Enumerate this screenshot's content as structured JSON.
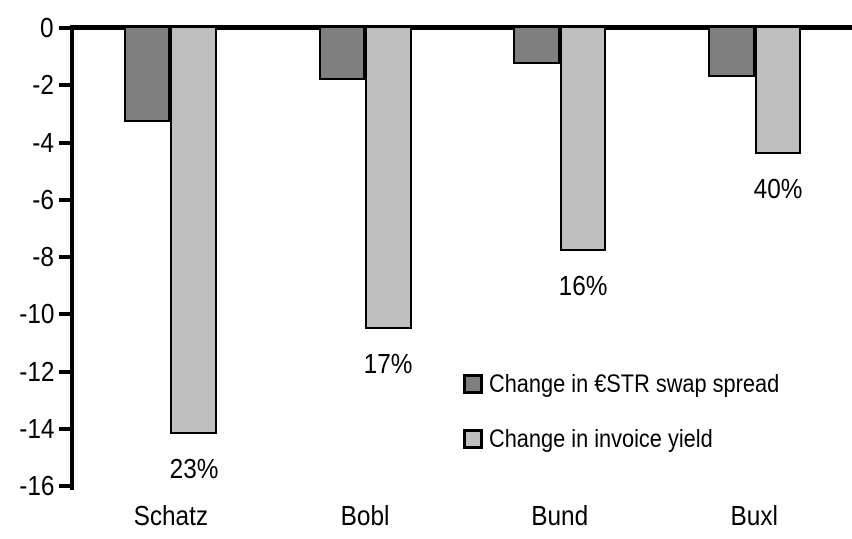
{
  "chart_data": {
    "type": "bar",
    "orientation": "vertical",
    "title": "",
    "xlabel": "",
    "ylabel": "",
    "categories": [
      "Schatz",
      "Bobl",
      "Bund",
      "Buxl"
    ],
    "series": [
      {
        "name": "Change in €STR swap spread",
        "color": "#7f7f7f",
        "values": [
          -3.3,
          -1.8,
          -1.25,
          -1.7
        ]
      },
      {
        "name": "Change in invoice yield",
        "color": "#bfbfbf",
        "values": [
          -14.2,
          -10.5,
          -7.8,
          -4.4
        ]
      }
    ],
    "bar_labels": {
      "attached_to_series": "Change in invoice yield",
      "values": [
        "23%",
        "17%",
        "16%",
        "40%"
      ]
    },
    "y_axis": {
      "min": -16,
      "max": 0,
      "tick_step": 2,
      "ticks": [
        0,
        -2,
        -4,
        -6,
        -8,
        -10,
        -12,
        -14,
        -16
      ]
    },
    "grid": false,
    "legend": {
      "position": "inside-bottom-right"
    },
    "colors": {
      "axis": "#000000",
      "bar_border": "#000000",
      "background": "#ffffff",
      "text": "#000000"
    }
  }
}
